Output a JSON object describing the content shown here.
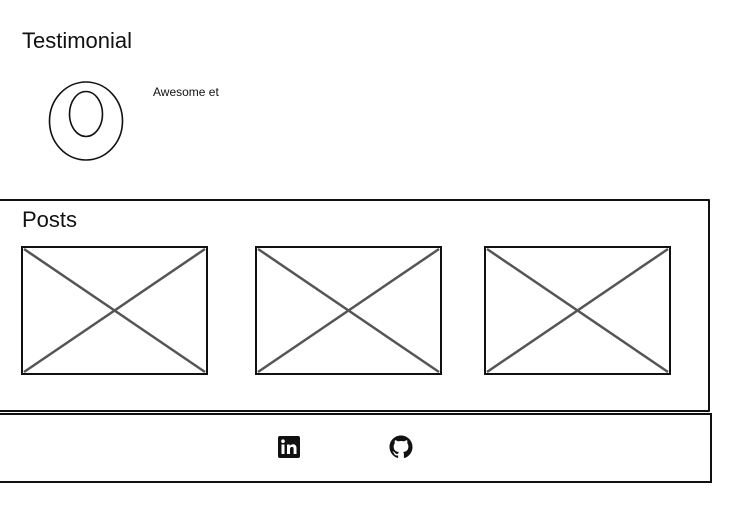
{
  "testimonial": {
    "title": "Testimonial",
    "quote": "Awesome et",
    "avatar_icon": "avatar-placeholder-icon"
  },
  "posts": {
    "title": "Posts",
    "items": [
      {
        "image_icon": "image-placeholder-icon"
      },
      {
        "image_icon": "image-placeholder-icon"
      },
      {
        "image_icon": "image-placeholder-icon"
      }
    ]
  },
  "footer": {
    "social_links": [
      {
        "icon": "linkedin-icon"
      },
      {
        "icon": "github-icon"
      }
    ]
  },
  "colors": {
    "stroke": "#111111",
    "placeholder_line": "#555555",
    "background": "#ffffff"
  }
}
